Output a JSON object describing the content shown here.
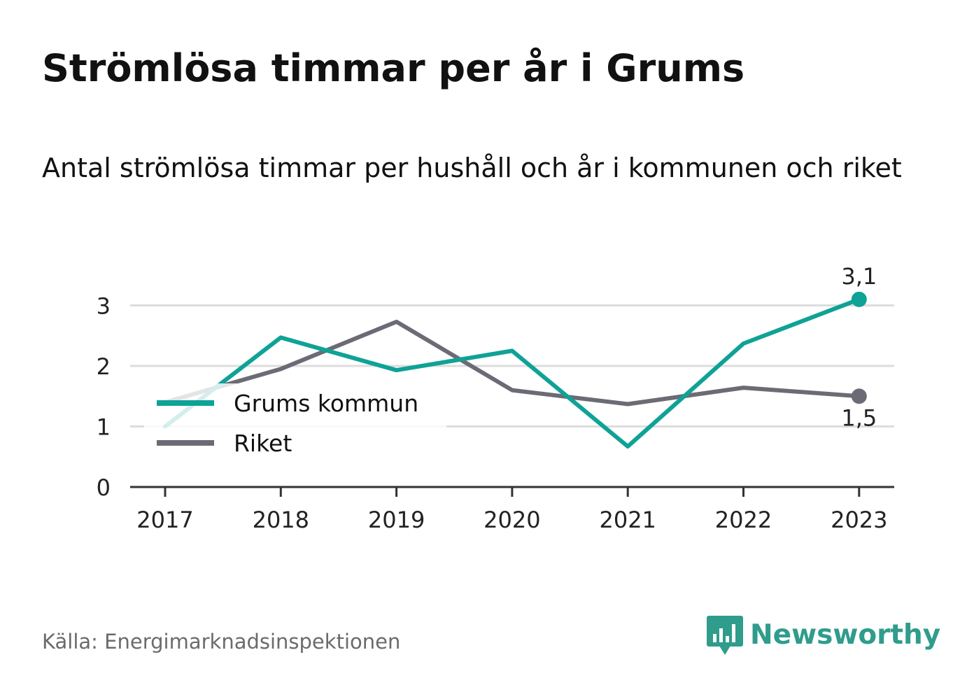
{
  "title": "Strömlösa timmar per år i Grums",
  "subtitle": "Antal strömlösa timmar per hushåll och år i kommunen och riket",
  "source": "Källa: Energimarknadsinspektionen",
  "brand": {
    "name": "Newsworthy",
    "icon": "newsworthy-logo-icon",
    "color": "#2f9c8c"
  },
  "chart_data": {
    "type": "line",
    "x": [
      "2017",
      "2018",
      "2019",
      "2020",
      "2021",
      "2022",
      "2023"
    ],
    "yticks": [
      "0",
      "1",
      "2",
      "3"
    ],
    "ylim": [
      0,
      3.3
    ],
    "grid": true,
    "legend_position": "left-middle",
    "series": [
      {
        "name": "Grums kommun",
        "color": "#0fa296",
        "values": [
          1.0,
          2.47,
          1.93,
          2.25,
          0.67,
          2.37,
          3.1
        ],
        "end_label": "3,1"
      },
      {
        "name": "Riket",
        "color": "#6c6b75",
        "values": [
          1.4,
          1.95,
          2.73,
          1.6,
          1.37,
          1.64,
          1.5
        ],
        "end_label": "1,5"
      }
    ]
  }
}
